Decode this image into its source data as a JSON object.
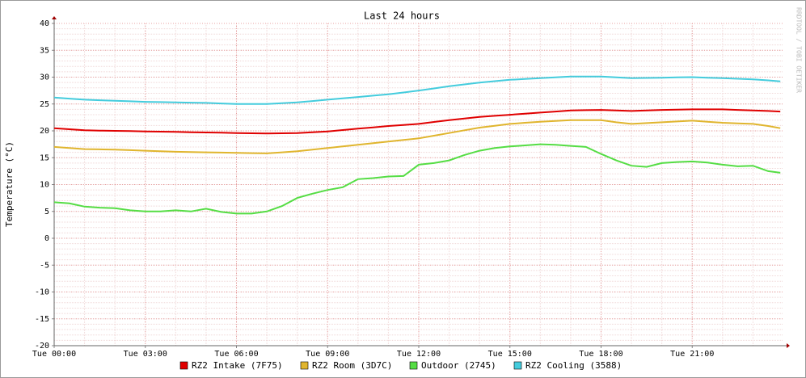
{
  "chart_data": {
    "type": "line",
    "title": "Last 24 hours",
    "y_label": "Temperature (°C)",
    "watermark": "RRDTOOL / TOBI OETIKER",
    "x": [
      0,
      0.5,
      1,
      1.5,
      2,
      2.5,
      3,
      3.5,
      4,
      4.5,
      5,
      5.5,
      6,
      6.5,
      7,
      7.5,
      8,
      8.5,
      9,
      9.5,
      10,
      10.5,
      11,
      11.5,
      12,
      12.5,
      13,
      13.5,
      14,
      14.5,
      15,
      15.5,
      16,
      16.5,
      17,
      17.5,
      18,
      18.5,
      19,
      19.5,
      20,
      20.5,
      21,
      21.5,
      22,
      22.5,
      23,
      23.5,
      23.9
    ],
    "xlim": [
      0,
      24
    ],
    "xticks": [
      {
        "value": 0,
        "label": "Tue 00:00"
      },
      {
        "value": 3,
        "label": "Tue 03:00"
      },
      {
        "value": 6,
        "label": "Tue 06:00"
      },
      {
        "value": 9,
        "label": "Tue 09:00"
      },
      {
        "value": 12,
        "label": "Tue 12:00"
      },
      {
        "value": 15,
        "label": "Tue 15:00"
      },
      {
        "value": 18,
        "label": "Tue 18:00"
      },
      {
        "value": 21,
        "label": "Tue 21:00"
      }
    ],
    "ylim": [
      -20,
      40
    ],
    "yticks": [
      -20,
      -15,
      -10,
      -5,
      0,
      5,
      10,
      15,
      20,
      25,
      30,
      35,
      40
    ],
    "grid": true,
    "legend": "bottom",
    "series": [
      {
        "name": "RZ2 Intake (7F75)",
        "color": "#e00000",
        "values": [
          20.5,
          20.3,
          20.1,
          20.05,
          20.0,
          19.95,
          19.9,
          19.85,
          19.8,
          19.75,
          19.7,
          19.65,
          19.6,
          19.55,
          19.5,
          19.55,
          19.6,
          19.75,
          19.9,
          20.15,
          20.4,
          20.65,
          20.9,
          21.1,
          21.3,
          21.65,
          22.0,
          22.3,
          22.6,
          22.8,
          23.0,
          23.2,
          23.4,
          23.6,
          23.8,
          23.85,
          23.9,
          23.8,
          23.7,
          23.8,
          23.9,
          23.95,
          24.0,
          24.0,
          24.0,
          23.9,
          23.8,
          23.7,
          23.6
        ]
      },
      {
        "name": "RZ2 Room (3D7C)",
        "color": "#e0b52e",
        "values": [
          17.0,
          16.8,
          16.6,
          16.55,
          16.5,
          16.4,
          16.3,
          16.2,
          16.1,
          16.05,
          16.0,
          15.95,
          15.9,
          15.85,
          15.8,
          16.0,
          16.2,
          16.5,
          16.8,
          17.1,
          17.4,
          17.7,
          18.0,
          18.3,
          18.6,
          19.1,
          19.6,
          20.1,
          20.6,
          20.95,
          21.3,
          21.5,
          21.7,
          21.85,
          22.0,
          22.0,
          22.0,
          21.6,
          21.3,
          21.45,
          21.6,
          21.75,
          21.9,
          21.7,
          21.5,
          21.4,
          21.3,
          20.9,
          20.5
        ]
      },
      {
        "name": "Outdoor (2745)",
        "color": "#55dd44",
        "values": [
          6.7,
          6.5,
          5.9,
          5.7,
          5.6,
          5.2,
          5.0,
          5.0,
          5.2,
          5.0,
          5.5,
          4.9,
          4.6,
          4.6,
          5.0,
          6.0,
          7.5,
          8.3,
          9.0,
          9.5,
          11.0,
          11.2,
          11.5,
          11.6,
          13.7,
          14.0,
          14.5,
          15.5,
          16.3,
          16.8,
          17.1,
          17.3,
          17.5,
          17.4,
          17.2,
          17.0,
          15.7,
          14.5,
          13.5,
          13.3,
          14.0,
          14.2,
          14.3,
          14.1,
          13.7,
          13.4,
          13.5,
          12.5,
          12.2
        ]
      },
      {
        "name": "RZ2 Cooling (3588)",
        "color": "#44ccdd",
        "values": [
          26.2,
          26.0,
          25.8,
          25.7,
          25.6,
          25.5,
          25.4,
          25.35,
          25.3,
          25.25,
          25.2,
          25.1,
          25.0,
          25.0,
          25.0,
          25.15,
          25.3,
          25.55,
          25.8,
          26.05,
          26.3,
          26.55,
          26.8,
          27.15,
          27.5,
          27.9,
          28.3,
          28.65,
          29.0,
          29.25,
          29.5,
          29.65,
          29.8,
          29.95,
          30.1,
          30.1,
          30.1,
          29.95,
          29.8,
          29.85,
          29.9,
          29.95,
          30.0,
          29.9,
          29.8,
          29.7,
          29.6,
          29.4,
          29.2
        ]
      }
    ]
  }
}
